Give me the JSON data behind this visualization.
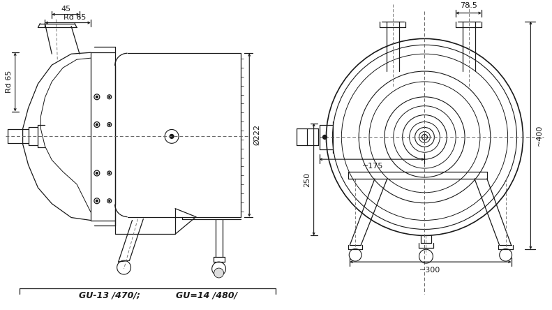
{
  "bg_color": "#ffffff",
  "line_color": "#1a1a1a",
  "lw": 0.9,
  "fig_width": 7.91,
  "fig_height": 4.44,
  "annotations": {
    "dim_45": "45",
    "dim_rd65_top": "Rd 65",
    "dim_rd65_left": "Rd 65",
    "dim_222": "Ø222",
    "dim_250": "250",
    "dim_78_5": "78.5",
    "dim_175": "~175",
    "dim_400": "~400",
    "dim_300": "~300",
    "label_gu13": "GU-13 /470/;",
    "label_gu14": "GU=14 /480/"
  }
}
